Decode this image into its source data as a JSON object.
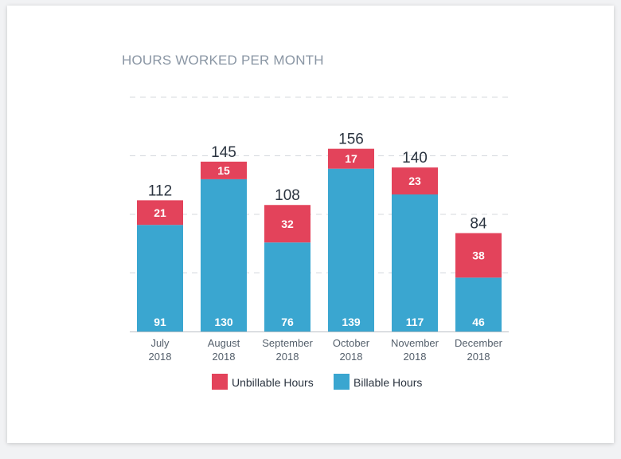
{
  "chart_data": {
    "type": "bar",
    "stacked": true,
    "title": "HOURS WORKED PER MONTH",
    "categories": [
      [
        "July",
        "2018"
      ],
      [
        "August",
        "2018"
      ],
      [
        "September",
        "2018"
      ],
      [
        "October",
        "2018"
      ],
      [
        "November",
        "2018"
      ],
      [
        "December",
        "2018"
      ]
    ],
    "series": [
      {
        "name": "Billable Hours",
        "color": "#3aa6d0",
        "values": [
          91,
          130,
          76,
          139,
          117,
          46
        ]
      },
      {
        "name": "Unbillable Hours",
        "color": "#e3435b",
        "values": [
          21,
          15,
          32,
          17,
          23,
          38
        ]
      }
    ],
    "totals": [
      112,
      145,
      108,
      156,
      140,
      84
    ],
    "ylim": [
      0,
      200
    ],
    "grid": "dashed horizontal",
    "legend": "bottom-center",
    "legend_order": [
      "Unbillable Hours",
      "Billable Hours"
    ]
  }
}
